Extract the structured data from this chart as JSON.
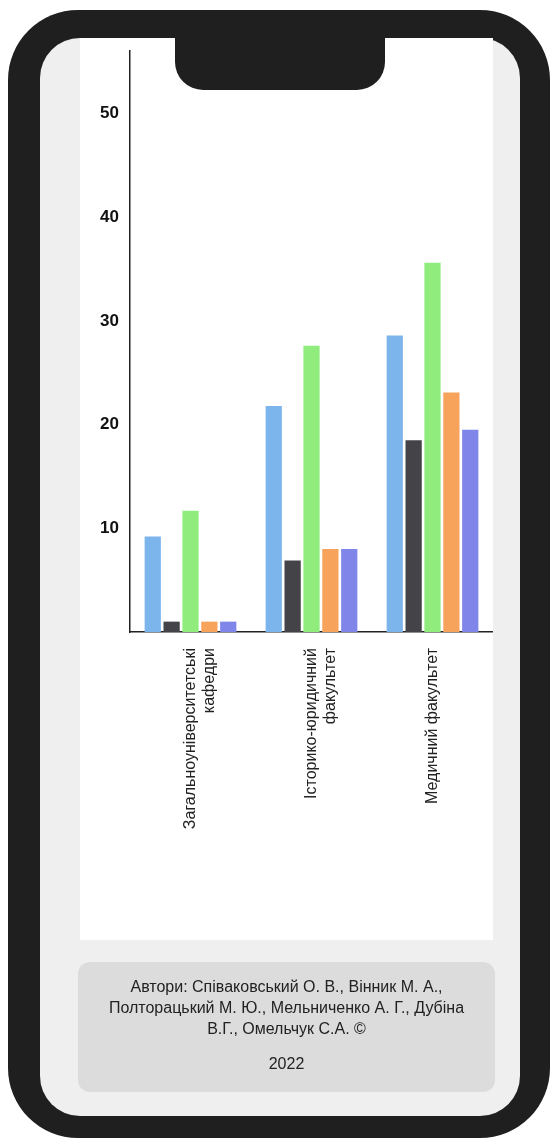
{
  "chart_data": {
    "type": "bar",
    "categories": [
      "Загальноуніверситетські кафедри",
      "Історико-юридичний факультет",
      "Медичний факультет"
    ],
    "series": [
      {
        "color": "#7cb5ec",
        "values": [
          9.2,
          21.8,
          28.6
        ]
      },
      {
        "color": "#434348",
        "values": [
          1,
          6.9,
          18.5
        ]
      },
      {
        "color": "#90ed7d",
        "values": [
          11.7,
          27.6,
          35.6
        ]
      },
      {
        "color": "#f7a35c",
        "values": [
          1,
          8,
          23.1
        ]
      },
      {
        "color": "#8085e9",
        "values": [
          1,
          8,
          19.5
        ]
      }
    ],
    "ylim": [
      0,
      56
    ],
    "yticks": [
      10,
      20,
      30,
      40,
      50
    ],
    "annotations": [
      "Автори: Співаковський О. В., Вінник М. А., Полторацький М. Ю., Мельниченко А. Г., Дубіна В.Г., Омельчук С.А. ©",
      "2022"
    ]
  }
}
